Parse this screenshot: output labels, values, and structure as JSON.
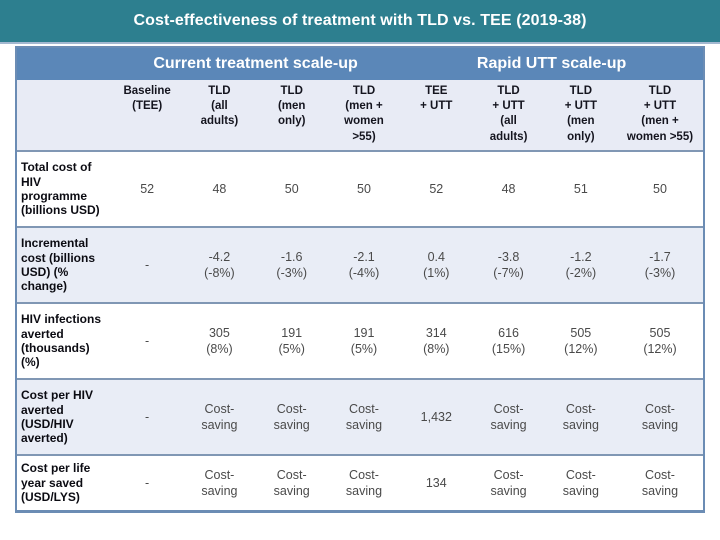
{
  "page": {
    "title": "Cost-effectiveness of treatment with TLD vs. TEE (2019-38)"
  },
  "colors": {
    "teal_bar": "#2d7f8f",
    "band_blue": "#5b87b8",
    "header_row_bg": "#e8ebf5",
    "alt_row_bg": "#e9edf6",
    "row_separator": "#8097b4",
    "table_border": "#6b8cb4",
    "title_text": "#ffffff",
    "data_text": "#4a4a4a"
  },
  "chart_data": {
    "type": "table",
    "group_headers": [
      "Current treatment scale-up",
      "Rapid UTT scale-up"
    ],
    "columns": [
      "Baseline\n(TEE)",
      "TLD\n(all\nadults)",
      "TLD\n(men\nonly)",
      "TLD\n(men +\nwomen\n>55)",
      "TEE\n+ UTT",
      "TLD\n+ UTT\n(all\nadults)",
      "TLD\n+ UTT\n(men\nonly)",
      "TLD\n+ UTT\n(men +\nwomen >55)"
    ],
    "rows": [
      {
        "label": "Total cost of\nHIV\nprogramme\n(billions USD)",
        "values": [
          "52",
          "48",
          "50",
          "50",
          "52",
          "48",
          "51",
          "50"
        ]
      },
      {
        "label": "Incremental\ncost (billions\nUSD) (%\nchange)",
        "values": [
          "-",
          "-4.2\n(-8%)",
          "-1.6\n(-3%)",
          "-2.1\n(-4%)",
          "0.4\n(1%)",
          "-3.8\n(-7%)",
          "-1.2\n(-2%)",
          "-1.7\n(-3%)"
        ]
      },
      {
        "label": "HIV infections\naverted\n(thousands)\n(%)",
        "values": [
          "-",
          "305\n(8%)",
          "191\n(5%)",
          "191\n(5%)",
          "314\n(8%)",
          "616\n(15%)",
          "505\n(12%)",
          "505\n(12%)"
        ]
      },
      {
        "label": "Cost per HIV\naverted\n(USD/HIV\naverted)",
        "values": [
          "-",
          "Cost-\nsaving",
          "Cost-\nsaving",
          "Cost-\nsaving",
          "1,432",
          "Cost-\nsaving",
          "Cost-\nsaving",
          "Cost-\nsaving"
        ]
      },
      {
        "label": "Cost per life\nyear saved\n(USD/LYS)",
        "values": [
          "-",
          "Cost-\nsaving",
          "Cost-\nsaving",
          "Cost-\nsaving",
          "134",
          "Cost-\nsaving",
          "Cost-\nsaving",
          "Cost-\nsaving"
        ]
      }
    ]
  }
}
